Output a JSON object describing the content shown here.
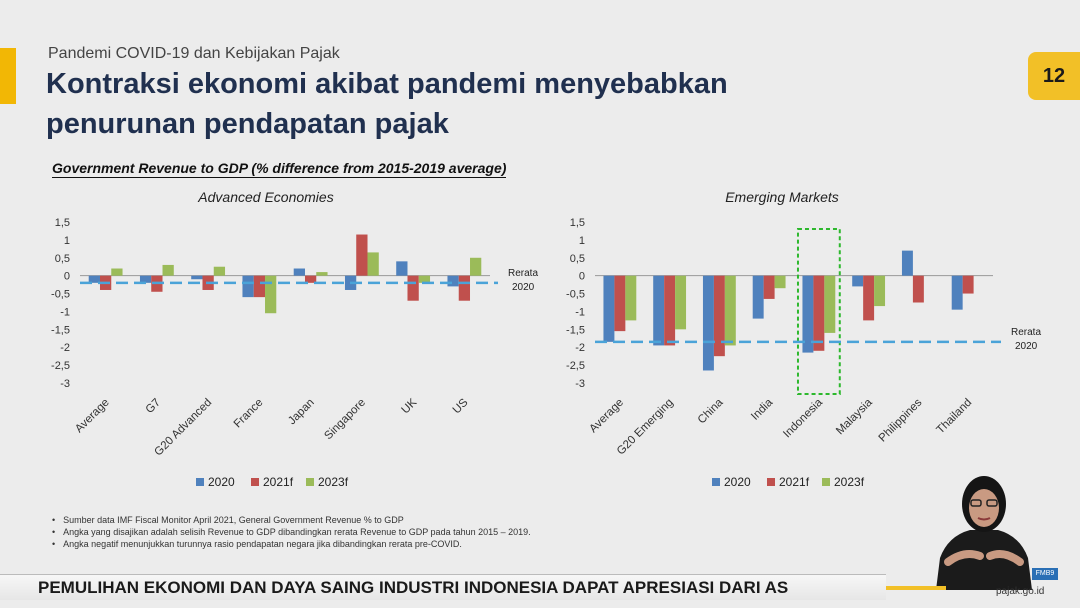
{
  "header": {
    "subtitle": "Pandemi COVID-19 dan Kebijakan Pajak",
    "title": "Kontraksi ekonomi akibat pandemi menyebabkan penurunan pendapatan pajak",
    "page_number": "12",
    "chart_heading": "Government Revenue to GDP (% difference from 2015-2019 average)"
  },
  "chart_data": [
    {
      "type": "bar",
      "title": "Advanced Economies",
      "categories": [
        "Average",
        "G7",
        "G20 Advanced",
        "France",
        "Japan",
        "Singapore",
        "UK",
        "US"
      ],
      "series": [
        {
          "name": "2020",
          "color": "#4f81bd",
          "values": [
            -0.2,
            -0.2,
            -0.1,
            -0.6,
            0.2,
            -0.4,
            0.4,
            -0.3
          ]
        },
        {
          "name": "2021f",
          "color": "#c0504d",
          "values": [
            -0.4,
            -0.45,
            -0.4,
            -0.6,
            -0.2,
            1.15,
            -0.7,
            -0.7
          ]
        },
        {
          "name": "2023f",
          "color": "#9bbb59",
          "values": [
            0.2,
            0.3,
            0.25,
            -1.05,
            0.1,
            0.65,
            -0.2,
            0.5
          ]
        }
      ],
      "reference_line": {
        "label": "Rerata 2020",
        "value": -0.2,
        "color": "#4aa3d8"
      },
      "yticks": [
        "1,5",
        "1",
        "0,5",
        "0",
        "-0,5",
        "-1",
        "-1,5",
        "-2",
        "-2,5",
        "-3"
      ],
      "ylim": [
        -3,
        1.5
      ],
      "legend": "bottom"
    },
    {
      "type": "bar",
      "title": "Emerging Markets",
      "categories": [
        "Average",
        "G20 Emerging",
        "China",
        "India",
        "Indonesia",
        "Malaysia",
        "Philippines",
        "Thailand"
      ],
      "series": [
        {
          "name": "2020",
          "color": "#4f81bd",
          "values": [
            -1.85,
            -1.95,
            -2.65,
            -1.2,
            -2.15,
            -0.3,
            0.7,
            -0.95
          ]
        },
        {
          "name": "2021f",
          "color": "#c0504d",
          "values": [
            -1.55,
            -1.95,
            -2.25,
            -0.65,
            -2.1,
            -1.25,
            -0.75,
            -0.5
          ]
        },
        {
          "name": "2023f",
          "color": "#9bbb59",
          "values": [
            -1.25,
            -1.5,
            -1.95,
            -0.35,
            -1.6,
            -0.85,
            0,
            0
          ]
        }
      ],
      "reference_line": {
        "label": "Rerata 2020",
        "value": -1.85,
        "color": "#4aa3d8"
      },
      "highlight_category": "Indonesia",
      "yticks": [
        "1,5",
        "1",
        "0,5",
        "0",
        "-0,5",
        "-1",
        "-1,5",
        "-2",
        "-2,5",
        "-3"
      ],
      "ylim": [
        -3,
        1.5
      ],
      "legend": "bottom"
    }
  ],
  "footnotes": [
    "Sumber data IMF Fiscal Monitor April 2021, General Government Revenue % to GDP",
    "Angka yang disajikan adalah selisih Revenue to GDP dibandingkan rerata Revenue to GDP pada tahun 2015 – 2019.",
    "Angka negatif menunjukkan turunnya rasio pendapatan negara jika dibandingkan rerata pre-COVID."
  ],
  "ticker": "PEMULIHAN EKONOMI DAN DAYA SAING INDUSTRI INDONESIA DAPAT APRESIASI DARI AS",
  "website": "pajak.go.id",
  "logo_label": "FMB9"
}
